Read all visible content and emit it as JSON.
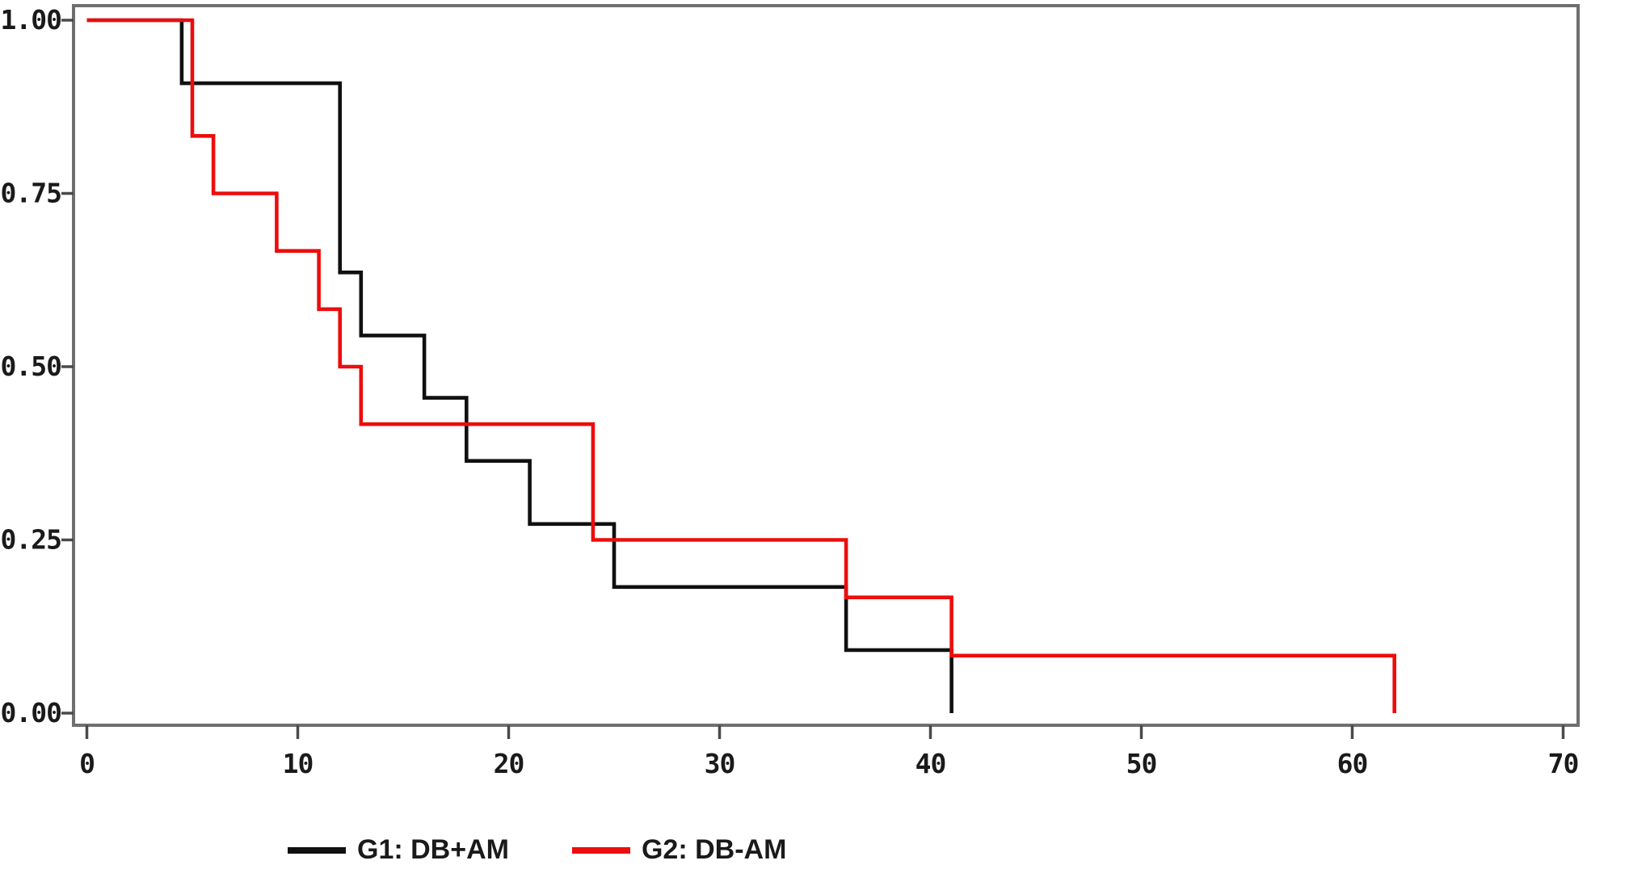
{
  "page": {
    "background_color": "#ffffff",
    "title": ""
  },
  "chart_data": {
    "type": "line",
    "subtype": "kaplan-meier-survival-step",
    "title": "",
    "xlabel": "",
    "ylabel": "",
    "xlim": [
      0,
      70
    ],
    "ylim": [
      0.0,
      1.0
    ],
    "grid": false,
    "legend_position": "bottom-left",
    "frame_color": "#6f6f6f",
    "tick_color": "#4a4a4a",
    "label_color": "#1a1a1a",
    "x_tick_values": [
      0,
      10,
      20,
      30,
      40,
      50,
      60,
      70
    ],
    "x_tick_labels": [
      "0",
      "10",
      "20",
      "30",
      "40",
      "50",
      "60",
      "70"
    ],
    "y_tick_values": [
      1.0,
      0.75,
      0.5,
      0.25,
      0.0
    ],
    "y_tick_labels": [
      "1.00",
      "0.75",
      "0.50",
      "0.25",
      "0.00"
    ],
    "series": [
      {
        "name": "G1: DB+AM",
        "color": "#101010",
        "line_width": 4.6,
        "event_times": [
          4.5,
          12,
          12,
          12,
          13,
          16,
          18,
          21,
          25,
          36,
          41
        ],
        "points": [
          [
            0,
            1.0
          ],
          [
            4.5,
            1.0
          ],
          [
            4.5,
            0.909
          ],
          [
            12,
            0.909
          ],
          [
            12,
            0.636
          ],
          [
            13,
            0.636
          ],
          [
            13,
            0.545
          ],
          [
            16,
            0.545
          ],
          [
            16,
            0.455
          ],
          [
            18,
            0.455
          ],
          [
            18,
            0.364
          ],
          [
            21,
            0.364
          ],
          [
            21,
            0.273
          ],
          [
            25,
            0.273
          ],
          [
            25,
            0.182
          ],
          [
            36,
            0.182
          ],
          [
            36,
            0.091
          ],
          [
            41,
            0.091
          ],
          [
            41,
            0.0
          ]
        ]
      },
      {
        "name": "G2: DB-AM",
        "color": "#ec0d0d",
        "line_width": 4.6,
        "event_times": [
          5,
          5,
          6,
          9,
          11,
          12,
          13,
          24,
          24,
          36,
          41,
          62
        ],
        "points": [
          [
            0,
            1.0
          ],
          [
            5,
            1.0
          ],
          [
            5,
            0.833
          ],
          [
            6,
            0.833
          ],
          [
            6,
            0.75
          ],
          [
            9,
            0.75
          ],
          [
            9,
            0.667
          ],
          [
            11,
            0.667
          ],
          [
            11,
            0.583
          ],
          [
            12,
            0.583
          ],
          [
            12,
            0.5
          ],
          [
            13,
            0.5
          ],
          [
            13,
            0.417
          ],
          [
            24,
            0.417
          ],
          [
            24,
            0.25
          ],
          [
            36,
            0.25
          ],
          [
            36,
            0.167
          ],
          [
            41,
            0.167
          ],
          [
            41,
            0.083
          ],
          [
            62,
            0.083
          ],
          [
            62,
            0.0
          ]
        ]
      }
    ]
  },
  "legend": {
    "items": [
      {
        "label": "G1: DB+AM",
        "color": "#101010"
      },
      {
        "label": "G2: DB-AM",
        "color": "#ec0d0d"
      }
    ]
  }
}
